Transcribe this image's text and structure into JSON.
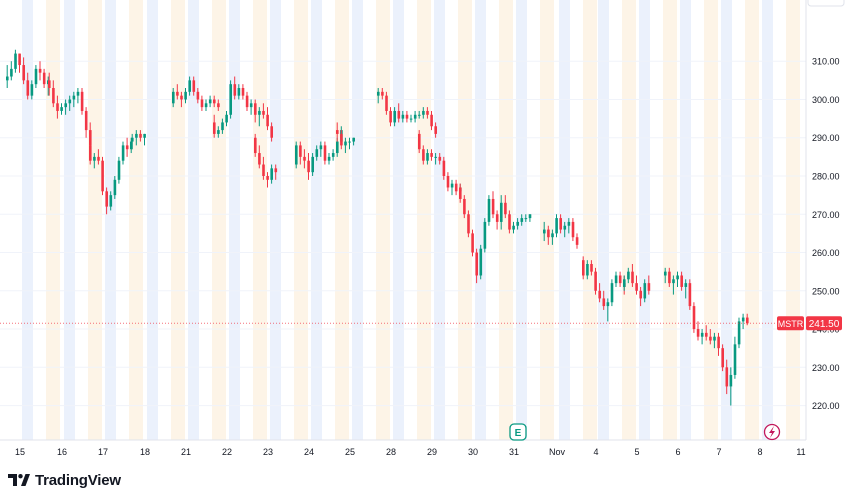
{
  "brand": {
    "name": "TradingView"
  },
  "chart_data": {
    "type": "candlestick",
    "symbol": "MSTR",
    "last_price": "241.50",
    "last_price_value": 241.5,
    "y_axis": {
      "ticks": [
        220,
        230,
        240,
        250,
        260,
        270,
        280,
        290,
        300,
        310
      ],
      "tick_labels": [
        "220.00",
        "230.00",
        "240.00",
        "250.00",
        "260.00",
        "270.00",
        "280.00",
        "290.00",
        "300.00",
        "310.00"
      ],
      "range": [
        211,
        326
      ]
    },
    "x_axis": {
      "labels": [
        "15",
        "16",
        "17",
        "18",
        "21",
        "22",
        "23",
        "24",
        "25",
        "28",
        "29",
        "30",
        "31",
        "Nov",
        "4",
        "5",
        "6",
        "7",
        "8",
        "11"
      ]
    },
    "sessions": [
      {
        "label": "15",
        "points": [
          [
            305,
            309,
            303,
            306
          ],
          [
            306,
            310,
            305,
            308
          ],
          [
            308,
            313,
            307,
            312
          ],
          [
            312,
            312,
            307,
            309
          ],
          [
            309,
            311,
            304,
            305
          ],
          [
            305,
            307,
            300,
            301
          ],
          [
            301,
            305,
            300,
            304
          ],
          [
            304,
            309,
            303,
            308
          ],
          [
            308,
            310,
            305,
            307
          ],
          [
            307,
            308,
            303,
            304
          ],
          [
            304,
            306,
            301,
            305
          ]
        ]
      },
      {
        "label": "16",
        "points": [
          [
            305,
            307,
            301,
            303
          ],
          [
            303,
            305,
            298,
            299
          ],
          [
            299,
            301,
            295,
            297
          ],
          [
            297,
            299,
            296,
            298
          ],
          [
            298,
            300,
            296,
            299
          ],
          [
            299,
            301,
            297,
            300
          ],
          [
            300,
            302,
            298,
            301
          ],
          [
            301,
            303,
            299,
            302
          ],
          [
            302,
            303,
            296,
            297
          ],
          [
            297,
            298,
            290,
            292
          ],
          [
            292,
            294,
            286,
            288
          ]
        ]
      },
      {
        "label": "17",
        "points": [
          [
            288,
            290,
            283,
            284
          ],
          [
            284,
            286,
            282,
            285
          ],
          [
            285,
            287,
            283,
            284
          ],
          [
            284,
            285,
            275,
            276
          ],
          [
            276,
            277,
            270,
            272
          ],
          [
            272,
            276,
            271,
            275
          ],
          [
            275,
            280,
            274,
            279
          ],
          [
            279,
            285,
            278,
            284
          ],
          [
            284,
            289,
            283,
            288
          ],
          [
            288,
            290,
            285,
            287
          ],
          [
            287,
            290,
            286,
            289
          ]
        ]
      },
      {
        "label": "18",
        "points": [
          [
            289,
            291,
            287,
            290
          ],
          [
            290,
            292,
            288,
            291
          ],
          [
            291,
            292,
            289,
            290
          ],
          [
            290,
            291,
            288,
            291
          ]
        ]
      },
      {
        "label": "21",
        "points": [
          [
            299,
            303,
            298,
            302
          ],
          [
            302,
            304,
            300,
            301
          ],
          [
            301,
            302,
            298,
            300
          ],
          [
            300,
            303,
            299,
            302
          ],
          [
            302,
            306,
            301,
            305
          ],
          [
            305,
            306,
            301,
            302
          ],
          [
            302,
            303,
            299,
            300
          ],
          [
            300,
            301,
            297,
            298
          ],
          [
            298,
            300,
            297,
            299
          ],
          [
            299,
            301,
            298,
            300
          ],
          [
            300,
            301,
            298,
            299
          ],
          [
            299,
            300,
            297,
            298
          ]
        ]
      },
      {
        "label": "22",
        "points": [
          [
            294,
            296,
            290,
            291
          ],
          [
            291,
            293,
            290,
            292
          ],
          [
            292,
            295,
            291,
            294
          ],
          [
            294,
            297,
            293,
            296
          ],
          [
            296,
            305,
            295,
            304
          ],
          [
            304,
            306,
            300,
            301
          ],
          [
            301,
            304,
            300,
            303
          ],
          [
            303,
            304,
            300,
            301
          ],
          [
            301,
            302,
            297,
            298
          ],
          [
            298,
            300,
            296,
            299
          ],
          [
            299,
            300,
            294,
            296
          ],
          [
            296,
            298,
            293,
            297
          ],
          [
            297,
            299,
            295,
            296
          ],
          [
            296,
            298,
            292,
            293
          ],
          [
            293,
            294,
            289,
            290
          ]
        ]
      },
      {
        "label": "23",
        "points": [
          [
            290,
            291,
            285,
            286
          ],
          [
            286,
            288,
            282,
            283
          ],
          [
            283,
            285,
            279,
            280
          ],
          [
            280,
            281,
            277,
            279
          ],
          [
            279,
            283,
            278,
            282
          ],
          [
            282,
            283,
            279,
            281
          ]
        ]
      },
      {
        "label": "24",
        "points": [
          [
            283,
            289,
            282,
            288
          ],
          [
            288,
            289,
            283,
            285
          ],
          [
            285,
            287,
            282,
            284
          ],
          [
            284,
            286,
            279,
            281
          ],
          [
            281,
            286,
            280,
            285
          ],
          [
            285,
            288,
            284,
            287
          ],
          [
            287,
            289,
            285,
            288
          ],
          [
            288,
            289,
            283,
            284
          ],
          [
            284,
            286,
            283,
            285
          ],
          [
            285,
            287,
            284,
            286
          ],
          [
            286,
            290,
            285,
            289
          ],
          [
            289,
            293,
            288,
            292
          ]
        ]
      },
      {
        "label": "25",
        "points": [
          [
            292,
            294,
            289,
            291
          ],
          [
            291,
            292,
            287,
            288
          ],
          [
            288,
            290,
            286,
            289
          ],
          [
            289,
            290,
            287,
            289
          ],
          [
            289,
            290,
            288,
            290
          ]
        ]
      },
      {
        "label": "28",
        "points": [
          [
            301,
            303,
            299,
            302
          ],
          [
            302,
            303,
            300,
            301
          ],
          [
            301,
            302,
            296,
            297
          ],
          [
            297,
            298,
            293,
            294
          ],
          [
            294,
            298,
            293,
            297
          ],
          [
            297,
            299,
            294,
            295
          ],
          [
            295,
            297,
            294,
            296
          ],
          [
            296,
            297,
            294,
            295
          ],
          [
            295,
            296,
            294,
            295
          ],
          [
            295,
            297,
            294,
            296
          ],
          [
            296,
            297,
            295,
            296
          ],
          [
            296,
            298,
            295,
            297
          ],
          [
            297,
            298,
            295,
            296
          ],
          [
            296,
            297,
            292,
            293
          ],
          [
            293,
            294,
            290,
            291
          ]
        ]
      },
      {
        "label": "29",
        "points": [
          [
            291,
            292,
            286,
            287
          ],
          [
            287,
            288,
            283,
            284
          ],
          [
            284,
            287,
            283,
            286
          ],
          [
            286,
            287,
            284,
            285
          ],
          [
            285,
            286,
            283,
            285
          ],
          [
            285,
            286,
            283,
            284
          ],
          [
            284,
            285,
            279,
            280
          ],
          [
            280,
            281,
            276,
            277
          ],
          [
            277,
            279,
            275,
            278
          ],
          [
            278,
            279,
            275,
            276
          ],
          [
            276,
            278,
            275,
            277
          ]
        ]
      },
      {
        "label": "30",
        "points": [
          [
            277,
            278,
            273,
            274
          ],
          [
            274,
            275,
            269,
            270
          ],
          [
            270,
            271,
            264,
            265
          ],
          [
            265,
            266,
            259,
            260
          ],
          [
            260,
            261,
            252,
            254
          ],
          [
            254,
            262,
            253,
            261
          ],
          [
            261,
            269,
            260,
            268
          ],
          [
            268,
            275,
            267,
            274
          ],
          [
            274,
            276,
            269,
            270
          ],
          [
            270,
            271,
            266,
            268
          ],
          [
            268,
            270,
            266,
            269
          ]
        ]
      },
      {
        "label": "31",
        "points": [
          [
            269,
            275,
            268,
            273
          ],
          [
            273,
            275,
            269,
            270
          ],
          [
            270,
            271,
            265,
            266
          ],
          [
            266,
            268,
            265,
            267
          ],
          [
            267,
            269,
            266,
            268
          ],
          [
            268,
            270,
            267,
            269
          ],
          [
            269,
            270,
            268,
            269
          ],
          [
            269,
            270,
            268,
            270
          ]
        ]
      },
      {
        "label": "Nov",
        "points": [
          [
            265,
            268,
            263,
            266
          ],
          [
            266,
            267,
            262,
            264
          ],
          [
            264,
            266,
            262,
            265
          ],
          [
            265,
            270,
            264,
            269
          ],
          [
            269,
            270,
            265,
            266
          ],
          [
            266,
            268,
            264,
            267
          ],
          [
            267,
            269,
            265,
            268
          ],
          [
            268,
            269,
            263,
            264
          ],
          [
            264,
            265,
            261,
            262
          ]
        ]
      },
      {
        "label": "4",
        "points": [
          [
            258,
            259,
            253,
            254
          ],
          [
            254,
            258,
            253,
            257
          ],
          [
            257,
            258,
            254,
            255
          ],
          [
            255,
            256,
            249,
            250
          ],
          [
            250,
            252,
            247,
            248
          ],
          [
            248,
            250,
            245,
            246
          ],
          [
            246,
            248,
            242,
            247
          ],
          [
            247,
            253,
            246,
            252
          ],
          [
            252,
            255,
            251,
            254
          ],
          [
            254,
            255,
            251,
            252
          ],
          [
            252,
            254,
            249,
            251
          ]
        ]
      },
      {
        "label": "5",
        "points": [
          [
            251,
            254,
            250,
            253
          ],
          [
            253,
            256,
            252,
            255
          ],
          [
            255,
            257,
            251,
            252
          ],
          [
            252,
            254,
            249,
            250
          ],
          [
            250,
            251,
            246,
            248
          ],
          [
            248,
            253,
            247,
            252
          ],
          [
            252,
            254,
            249,
            250
          ]
        ]
      },
      {
        "label": "6",
        "points": [
          [
            254,
            256,
            252,
            255
          ],
          [
            255,
            256,
            251,
            252
          ],
          [
            252,
            254,
            249,
            253
          ],
          [
            253,
            255,
            251,
            254
          ],
          [
            254,
            255,
            250,
            251
          ],
          [
            251,
            253,
            248,
            252
          ],
          [
            252,
            253,
            245,
            246
          ],
          [
            246,
            247,
            239,
            240
          ],
          [
            240,
            242,
            237,
            238
          ],
          [
            238,
            240,
            236,
            239
          ],
          [
            239,
            241,
            237,
            238
          ],
          [
            238,
            240,
            236,
            237
          ],
          [
            237,
            239,
            235,
            238
          ],
          [
            238,
            239,
            233,
            235
          ],
          [
            235,
            236,
            229,
            230
          ],
          [
            230,
            232,
            223,
            225
          ],
          [
            225,
            230,
            220,
            228
          ],
          [
            228,
            238,
            227,
            236
          ],
          [
            236,
            243,
            235,
            242
          ],
          [
            242,
            244,
            240,
            243
          ],
          [
            243,
            244,
            241,
            241.5
          ]
        ]
      }
    ]
  }
}
